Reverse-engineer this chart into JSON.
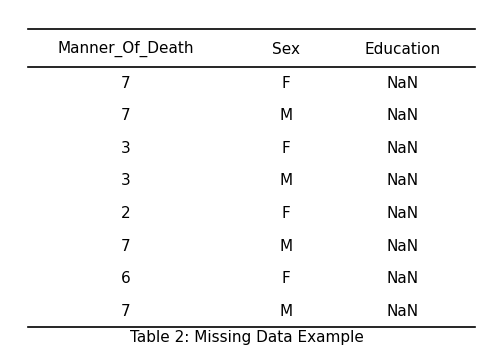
{
  "columns": [
    "Manner_Of_Death",
    "Sex",
    "Education"
  ],
  "rows": [
    [
      "7",
      "F",
      "NaN"
    ],
    [
      "7",
      "M",
      "NaN"
    ],
    [
      "3",
      "F",
      "NaN"
    ],
    [
      "3",
      "M",
      "NaN"
    ],
    [
      "2",
      "F",
      "NaN"
    ],
    [
      "7",
      "M",
      "NaN"
    ],
    [
      "6",
      "F",
      "NaN"
    ],
    [
      "7",
      "M",
      "NaN"
    ]
  ],
  "caption": "Table 2: Missing Data Example",
  "bg_color": "#ffffff",
  "text_color": "#000000",
  "font_size": 11,
  "caption_font_size": 11,
  "figsize": [
    4.94,
    3.56
  ]
}
